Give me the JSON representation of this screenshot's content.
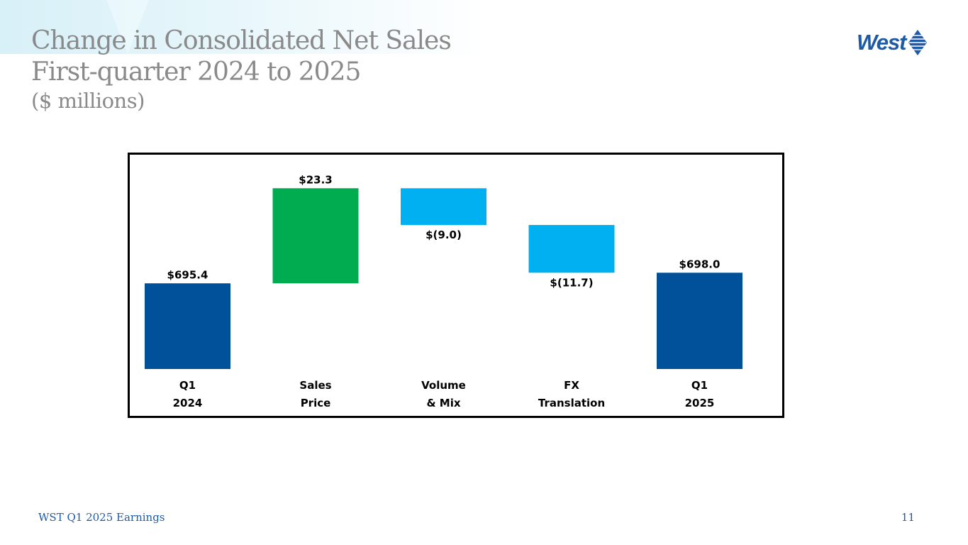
{
  "header": {
    "title_line1": "Change in Consolidated Net Sales",
    "title_line2": "First-quarter 2024 to 2025",
    "title_line3": "($ millions)"
  },
  "logo": {
    "text": "West",
    "icon": "west-diamond-icon"
  },
  "footer": {
    "label": "WST Q1 2025 Earnings",
    "page_number": "11"
  },
  "colors": {
    "title": "#8a8a8a",
    "total_bar": "#00509a",
    "increase_bar": "#00ac4f",
    "decrease_bar": "#00b0f0",
    "footer": "#1f5aa6"
  },
  "chart_data": {
    "type": "waterfall",
    "title": "Change in Consolidated Net Sales",
    "xlabel": "",
    "ylabel": "",
    "grid": false,
    "legend": "none",
    "categories": [
      [
        "Q1",
        "2024"
      ],
      [
        "Sales",
        "Price"
      ],
      [
        "Volume",
        "& Mix"
      ],
      [
        "FX",
        "Translation"
      ],
      [
        "Q1",
        "2025"
      ]
    ],
    "values": [
      695.4,
      23.3,
      -9.0,
      -11.7,
      698.0
    ],
    "kinds": [
      "total",
      "increase",
      "decrease",
      "decrease",
      "total"
    ],
    "labels": [
      "$695.4",
      "$23.3",
      "$(9.0)",
      "$(11.7)",
      "$698.0"
    ]
  }
}
